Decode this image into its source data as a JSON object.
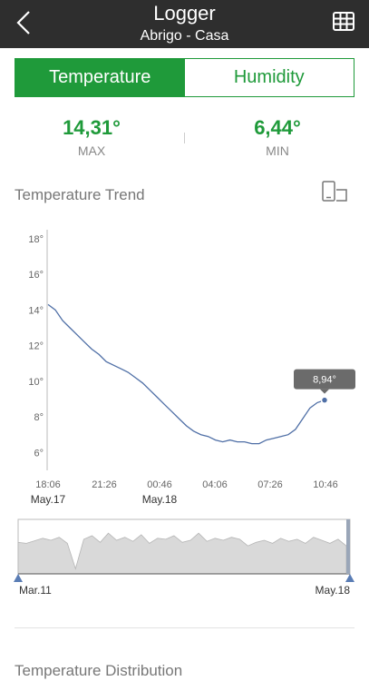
{
  "header": {
    "title": "Logger",
    "subtitle": "Abrigo - Casa"
  },
  "tabs": [
    {
      "label": "Temperature",
      "active": true
    },
    {
      "label": "Humidity",
      "active": false
    }
  ],
  "stats": {
    "max": {
      "value": "14,31°",
      "label": "MAX"
    },
    "min": {
      "value": "6,44°",
      "label": "MIN"
    }
  },
  "trend": {
    "title": "Temperature Trend"
  },
  "distribution": {
    "title": "Temperature Distribution"
  },
  "colors": {
    "accent": "#1f9a3a",
    "header_bg": "#2e2e2e",
    "line": "#4f6fa6",
    "tooltip_bg": "#6b6b6b"
  },
  "icons": [
    "back-arrow-icon",
    "table-grid-icon",
    "rotate-screen-icon"
  ],
  "chart_data": {
    "type": "line",
    "ylim": [
      5,
      18.5
    ],
    "y_ticks": [
      "18°",
      "16°",
      "14°",
      "12°",
      "10°",
      "8°",
      "6°"
    ],
    "x_ticks": [
      "18:06",
      "21:26",
      "00:46",
      "04:06",
      "07:26",
      "10:46"
    ],
    "date_labels": [
      {
        "tick": "18:06",
        "label": "May.17"
      },
      {
        "tick": "00:46",
        "label": "May.18"
      }
    ],
    "tooltip": "8,94°",
    "series": [
      {
        "values": [
          14.3,
          14.0,
          13.4,
          13.0,
          12.6,
          12.2,
          11.8,
          11.5,
          11.1,
          10.9,
          10.7,
          10.5,
          10.2,
          9.9,
          9.5,
          9.1,
          8.7,
          8.3,
          7.9,
          7.5,
          7.2,
          7.0,
          6.9,
          6.7,
          6.6,
          6.7,
          6.6,
          6.6,
          6.5,
          6.5,
          6.7,
          6.8,
          6.9,
          7.0,
          7.3,
          7.9,
          8.5,
          8.8,
          8.94
        ]
      }
    ],
    "overview": {
      "range_labels": [
        "Mar.11",
        "May.18"
      ],
      "values": [
        0.62,
        0.6,
        0.65,
        0.7,
        0.66,
        0.72,
        0.6,
        0.1,
        0.68,
        0.75,
        0.62,
        0.8,
        0.66,
        0.72,
        0.64,
        0.77,
        0.6,
        0.7,
        0.68,
        0.75,
        0.62,
        0.66,
        0.8,
        0.64,
        0.7,
        0.66,
        0.72,
        0.68,
        0.55,
        0.62,
        0.66,
        0.6,
        0.7,
        0.64,
        0.68,
        0.6,
        0.72,
        0.66,
        0.6,
        0.68,
        0.55
      ]
    }
  }
}
